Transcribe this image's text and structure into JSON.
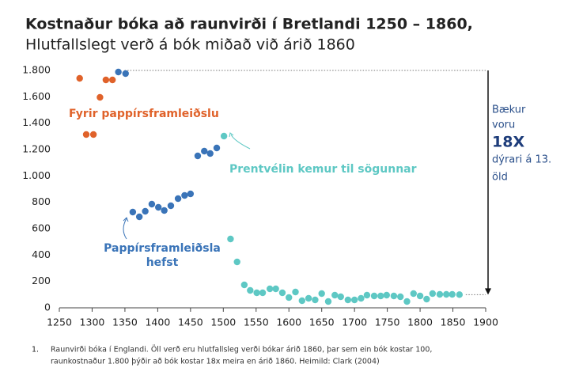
{
  "chart_data": {
    "type": "scatter",
    "title": "Kostnaður bóka að raunvirði í Bretlandi 1250 – 1860,",
    "subtitle": "Hlutfallslegt verð á bók miðað við árið 1860",
    "xlim": [
      1250,
      1900
    ],
    "xticks": [
      1250,
      1300,
      1350,
      1400,
      1450,
      1500,
      1550,
      1600,
      1650,
      1700,
      1750,
      1800,
      1850,
      1900
    ],
    "ylim": [
      0,
      1800
    ],
    "yticks": [
      0,
      200,
      400,
      600,
      800,
      {
        "value": 1000,
        "label": "1.000"
      },
      {
        "value": 1200,
        "label": "1.200"
      },
      {
        "value": 1400,
        "label": "1.400"
      },
      {
        "value": 1600,
        "label": "1.600"
      },
      {
        "value": 1800,
        "label": "1.800"
      }
    ],
    "series": [
      {
        "color": "#e0622a",
        "x": [
          1281,
          1291,
          1302,
          1312,
          1321,
          1331
        ],
        "values": [
          1740,
          1314,
          1314,
          1596,
          1728,
          1728
        ]
      },
      {
        "color": "#3a74b8",
        "x": [
          1340,
          1351,
          1362,
          1372,
          1381,
          1391,
          1401,
          1410,
          1420,
          1431,
          1441,
          1450,
          1461,
          1471,
          1480,
          1490
        ],
        "values": [
          1788,
          1776,
          726,
          690,
          732,
          786,
          762,
          738,
          774,
          828,
          852,
          864,
          1152,
          1188,
          1170,
          1212
        ]
      },
      {
        "color": "#5ec8c4",
        "x": [
          1501,
          1511,
          1521,
          1532,
          1541,
          1551,
          1560,
          1571,
          1580,
          1590,
          1600,
          1610,
          1620,
          1630,
          1640,
          1650,
          1660,
          1670,
          1679,
          1690,
          1700,
          1710,
          1719,
          1730,
          1740,
          1749,
          1760,
          1770,
          1780,
          1790,
          1800,
          1810,
          1819,
          1830,
          1840,
          1849,
          1860
        ],
        "values": [
          1302,
          522,
          348,
          174,
          132,
          114,
          114,
          144,
          144,
          114,
          78,
          120,
          54,
          72,
          60,
          108,
          48,
          96,
          84,
          60,
          60,
          72,
          96,
          90,
          90,
          96,
          90,
          84,
          48,
          108,
          90,
          66,
          108,
          102,
          102,
          102,
          100
        ]
      }
    ],
    "reference_lines": [
      1800,
      100
    ],
    "annotations": [
      {
        "lines": [
          "Fyrir pappírsframleiðslu"
        ],
        "color": "#e0622a"
      },
      {
        "lines": [
          "Prentvélin kemur til sögunnar"
        ],
        "color": "#5ec8c4"
      },
      {
        "lines": [
          "Pappírsframleiðsla",
          "hefst"
        ],
        "color": "#3a74b8"
      }
    ],
    "side_note": [
      "Bækur",
      "voru",
      "18X",
      "dýrari á 13.",
      "öld"
    ],
    "footnote": {
      "number": "1.",
      "lines": [
        "Raunvirði bóka í Englandi. Öll verð eru hlutfallsleg verði bókar árið 1860, þar sem ein bók kostar 100,",
        "raunkostnaður 1.800 þýðir að bók kostar 18x meira en árið 1860. Heimild: Clark (2004)"
      ]
    }
  }
}
